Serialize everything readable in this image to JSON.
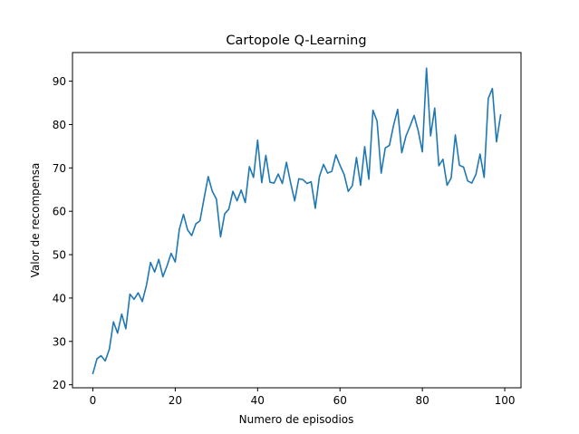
{
  "chart_data": {
    "type": "line",
    "title": "Cartopole Q-Learning",
    "xlabel": "Numero de episodios",
    "ylabel": "Valor de recompensa",
    "xlim": [
      -4.95,
      103.95
    ],
    "ylim": [
      19.3,
      96.6
    ],
    "xticks": [
      0,
      20,
      40,
      60,
      80,
      100
    ],
    "yticks": [
      20,
      30,
      40,
      50,
      60,
      70,
      80,
      90
    ],
    "grid": false,
    "line_color": "#1f77b4",
    "series": [
      {
        "x": [
          0,
          1,
          2,
          3,
          4,
          5,
          6,
          7,
          8,
          9,
          10,
          11,
          12,
          13,
          14,
          15,
          16,
          17,
          18,
          19,
          20,
          21,
          22,
          23,
          24,
          25,
          26,
          27,
          28,
          29,
          30,
          31,
          32,
          33,
          34,
          35,
          36,
          37,
          38,
          39,
          40,
          41,
          42,
          43,
          44,
          45,
          46,
          47,
          48,
          49,
          50,
          51,
          52,
          53,
          54,
          55,
          56,
          57,
          58,
          59,
          60,
          61,
          62,
          63,
          64,
          65,
          66,
          67,
          68,
          69,
          70,
          71,
          72,
          73,
          74,
          75,
          76,
          77,
          78,
          79,
          80,
          81,
          82,
          83,
          84,
          85,
          86,
          87,
          88,
          89,
          90,
          91,
          92,
          93,
          94,
          95,
          96,
          97,
          98,
          99
        ],
        "y": [
          22.6,
          26.0,
          26.7,
          25.5,
          28.2,
          34.5,
          31.9,
          36.3,
          32.9,
          40.9,
          39.7,
          41.2,
          39.2,
          42.9,
          48.2,
          46.0,
          48.9,
          44.9,
          47.4,
          50.3,
          48.3,
          55.9,
          59.3,
          55.7,
          54.4,
          57.1,
          57.8,
          63.0,
          68.0,
          64.6,
          62.8,
          54.1,
          59.4,
          60.5,
          64.6,
          62.4,
          64.9,
          62.0,
          70.3,
          67.8,
          76.4,
          66.6,
          72.9,
          66.7,
          66.5,
          68.6,
          66.4,
          71.3,
          66.6,
          62.4,
          67.5,
          67.3,
          66.4,
          66.8,
          60.7,
          68.0,
          70.8,
          68.8,
          69.2,
          73.0,
          70.6,
          68.5,
          64.6,
          65.9,
          72.4,
          66.0,
          74.9,
          67.4,
          83.3,
          80.8,
          68.8,
          74.6,
          75.2,
          79.8,
          83.5,
          73.5,
          77.3,
          79.6,
          82.1,
          78.5,
          73.7,
          93.0,
          77.4,
          83.8,
          70.5,
          72.0,
          66.0,
          67.7,
          77.6,
          70.6,
          70.2,
          67.0,
          66.5,
          68.5,
          73.2,
          67.8,
          86.0,
          88.3,
          76.0,
          82.2
        ]
      }
    ]
  }
}
